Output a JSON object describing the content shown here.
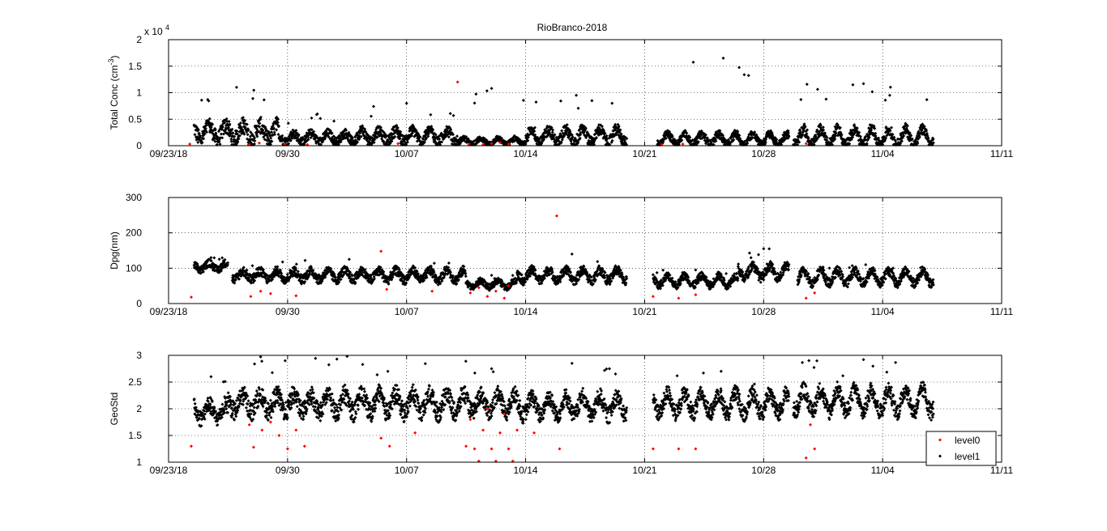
{
  "figure": {
    "title": "RioBranco-2018",
    "exponent_prefix": "x 10",
    "exponent_power": "4"
  },
  "colors": {
    "level0": "#ff0000",
    "level1": "#000000",
    "grid": "#000000",
    "background": "#ffffff"
  },
  "legend": {
    "placement": "bottom-right",
    "entries": [
      "level0",
      "level1"
    ]
  },
  "chart_data": [
    {
      "type": "scatter",
      "ylabel": "Total Conc (cm",
      "ylabel_sup": "-3",
      "ylabel_close": ")",
      "xlim": [
        "2018-09-23",
        "2018-11-11"
      ],
      "ylim": [
        0,
        20000
      ],
      "x_ticks": [
        "09/23/18",
        "09/30",
        "10/07",
        "10/14",
        "10/21",
        "10/28",
        "11/04",
        "11/11"
      ],
      "y_ticks": [
        "0",
        "0.5",
        "1",
        "1.5",
        "2"
      ],
      "grid": true,
      "series": [
        {
          "name": "level0",
          "marker": "diamond",
          "color": "#ff0000",
          "points": [
            [
              "2018-09-24 06:00",
              300
            ],
            [
              "2018-09-27 18:00",
              200
            ],
            [
              "2018-09-28 08:00",
              500
            ],
            [
              "2018-09-29 20:00",
              300
            ],
            [
              "2018-10-01 04:00",
              200
            ],
            [
              "2018-10-06 12:00",
              400
            ],
            [
              "2018-10-10 00:00",
              12000
            ],
            [
              "2018-10-10 16:00",
              300
            ],
            [
              "2018-10-11 12:00",
              200
            ],
            [
              "2018-10-12 00:00",
              400
            ],
            [
              "2018-10-12 12:00",
              600
            ],
            [
              "2018-10-13 00:00",
              300
            ],
            [
              "2018-10-22 00:00",
              200
            ],
            [
              "2018-10-23 06:00",
              300
            ],
            [
              "2018-10-30 12:00",
              400
            ]
          ]
        },
        {
          "name": "level1",
          "marker": "diamond",
          "color": "#000000",
          "segments": [
            {
              "start": "2018-09-24 12:00",
              "end": "2018-09-29 12:00",
              "base": 2500,
              "amp": 3500,
              "peak": 11000
            },
            {
              "start": "2018-09-29 12:00",
              "end": "2018-10-04 00:00",
              "base": 1500,
              "amp": 2000,
              "peak": 6000
            },
            {
              "start": "2018-10-04 00:00",
              "end": "2018-10-10 00:00",
              "base": 1800,
              "amp": 2500,
              "peak": 8000
            },
            {
              "start": "2018-10-10 00:00",
              "end": "2018-10-14 00:00",
              "base": 800,
              "amp": 1200,
              "peak": 10800
            },
            {
              "start": "2018-10-14 00:00",
              "end": "2018-10-19 23:00",
              "base": 1800,
              "amp": 2500,
              "peak": 9500
            },
            {
              "start": "2018-10-21 18:00",
              "end": "2018-10-29 12:00",
              "base": 1200,
              "amp": 1800,
              "peak": 16500
            },
            {
              "start": "2018-10-29 18:00",
              "end": "2018-11-07 00:00",
              "base": 1600,
              "amp": 2500,
              "peak": 11700
            }
          ]
        }
      ]
    },
    {
      "type": "scatter",
      "ylabel": "Dpg(nm)",
      "xlim": [
        "2018-09-23",
        "2018-11-11"
      ],
      "ylim": [
        0,
        300
      ],
      "x_ticks": [
        "09/23/18",
        "09/30",
        "10/07",
        "10/14",
        "10/21",
        "10/28",
        "11/04",
        "11/11"
      ],
      "y_ticks": [
        "0",
        "100",
        "200",
        "300"
      ],
      "grid": true,
      "series": [
        {
          "name": "level0",
          "marker": "diamond",
          "color": "#ff0000",
          "points": [
            [
              "2018-09-24 08:00",
              18
            ],
            [
              "2018-09-27 20:00",
              20
            ],
            [
              "2018-09-28 10:00",
              35
            ],
            [
              "2018-09-29 00:00",
              28
            ],
            [
              "2018-09-30 12:00",
              22
            ],
            [
              "2018-10-05 12:00",
              148
            ],
            [
              "2018-10-05 20:00",
              40
            ],
            [
              "2018-10-08 12:00",
              35
            ],
            [
              "2018-10-10 18:00",
              30
            ],
            [
              "2018-10-11 06:00",
              45
            ],
            [
              "2018-10-11 18:00",
              20
            ],
            [
              "2018-10-12 06:00",
              35
            ],
            [
              "2018-10-12 18:00",
              15
            ],
            [
              "2018-10-13 00:00",
              50
            ],
            [
              "2018-10-15 20:00",
              248
            ],
            [
              "2018-10-21 12:00",
              20
            ],
            [
              "2018-10-23 00:00",
              15
            ],
            [
              "2018-10-24 00:00",
              25
            ],
            [
              "2018-10-30 12:00",
              15
            ],
            [
              "2018-10-31 00:00",
              30
            ]
          ]
        },
        {
          "name": "level1",
          "marker": "diamond",
          "color": "#000000",
          "segments": [
            {
              "start": "2018-09-24 12:00",
              "end": "2018-09-26 12:00",
              "base": 105,
              "amp": 25,
              "peak": 130
            },
            {
              "start": "2018-09-26 18:00",
              "end": "2018-10-10 12:00",
              "base": 80,
              "amp": 30,
              "peak": 125
            },
            {
              "start": "2018-10-10 12:00",
              "end": "2018-10-13 12:00",
              "base": 55,
              "amp": 20,
              "peak": 80
            },
            {
              "start": "2018-10-13 12:00",
              "end": "2018-10-19 23:00",
              "base": 80,
              "amp": 30,
              "peak": 140
            },
            {
              "start": "2018-10-21 12:00",
              "end": "2018-10-26 12:00",
              "base": 65,
              "amp": 25,
              "peak": 95
            },
            {
              "start": "2018-10-26 12:00",
              "end": "2018-10-29 12:00",
              "base": 90,
              "amp": 30,
              "peak": 155
            },
            {
              "start": "2018-10-30 00:00",
              "end": "2018-11-07 00:00",
              "base": 75,
              "amp": 30,
              "peak": 110
            }
          ]
        }
      ]
    },
    {
      "type": "scatter",
      "ylabel": "GeoStd",
      "xlim": [
        "2018-09-23",
        "2018-11-11"
      ],
      "ylim": [
        1,
        3
      ],
      "x_ticks": [
        "09/23/18",
        "09/30",
        "10/07",
        "10/14",
        "10/21",
        "10/28",
        "11/04",
        "11/11"
      ],
      "y_ticks": [
        "1",
        "1.5",
        "2",
        "2.5",
        "3"
      ],
      "grid": true,
      "series": [
        {
          "name": "level0",
          "marker": "diamond",
          "color": "#ff0000",
          "points": [
            [
              "2018-09-24 08:00",
              1.3
            ],
            [
              "2018-09-27 18:00",
              1.7
            ],
            [
              "2018-09-28 00:00",
              1.28
            ],
            [
              "2018-09-28 12:00",
              1.6
            ],
            [
              "2018-09-29 00:00",
              1.75
            ],
            [
              "2018-09-29 12:00",
              1.5
            ],
            [
              "2018-09-30 00:00",
              1.25
            ],
            [
              "2018-09-30 12:00",
              1.6
            ],
            [
              "2018-10-01 00:00",
              1.3
            ],
            [
              "2018-10-05 12:00",
              1.45
            ],
            [
              "2018-10-06 00:00",
              1.3
            ],
            [
              "2018-10-07 12:00",
              1.55
            ],
            [
              "2018-10-10 12:00",
              1.3
            ],
            [
              "2018-10-10 18:00",
              1.8
            ],
            [
              "2018-10-11 00:00",
              1.25
            ],
            [
              "2018-10-11 06:00",
              1.02
            ],
            [
              "2018-10-11 12:00",
              1.6
            ],
            [
              "2018-10-11 18:00",
              2.0
            ],
            [
              "2018-10-12 00:00",
              1.25
            ],
            [
              "2018-10-12 06:00",
              1.02
            ],
            [
              "2018-10-12 12:00",
              1.55
            ],
            [
              "2018-10-12 18:00",
              1.9
            ],
            [
              "2018-10-13 00:00",
              1.25
            ],
            [
              "2018-10-13 06:00",
              1.02
            ],
            [
              "2018-10-13 12:00",
              1.6
            ],
            [
              "2018-10-14 12:00",
              1.55
            ],
            [
              "2018-10-16 00:00",
              1.25
            ],
            [
              "2018-10-21 12:00",
              1.25
            ],
            [
              "2018-10-23 00:00",
              1.25
            ],
            [
              "2018-10-24 00:00",
              1.25
            ],
            [
              "2018-10-30 12:00",
              1.08
            ],
            [
              "2018-10-30 18:00",
              1.7
            ],
            [
              "2018-10-31 00:00",
              1.25
            ]
          ]
        },
        {
          "name": "level1",
          "marker": "diamond",
          "color": "#000000",
          "segments": [
            {
              "start": "2018-09-24 12:00",
              "end": "2018-09-26 12:00",
              "base": 1.95,
              "amp": 0.35,
              "peak": 2.6
            },
            {
              "start": "2018-09-26 12:00",
              "end": "2018-10-10 12:00",
              "base": 2.1,
              "amp": 0.4,
              "peak": 2.98
            },
            {
              "start": "2018-10-10 12:00",
              "end": "2018-10-13 12:00",
              "base": 2.1,
              "amp": 0.35,
              "peak": 2.75
            },
            {
              "start": "2018-10-13 12:00",
              "end": "2018-10-19 23:00",
              "base": 2.05,
              "amp": 0.35,
              "peak": 2.85
            },
            {
              "start": "2018-10-21 12:00",
              "end": "2018-10-29 12:00",
              "base": 2.1,
              "amp": 0.35,
              "peak": 2.7
            },
            {
              "start": "2018-10-29 18:00",
              "end": "2018-11-07 00:00",
              "base": 2.15,
              "amp": 0.35,
              "peak": 2.92
            }
          ]
        }
      ]
    }
  ]
}
